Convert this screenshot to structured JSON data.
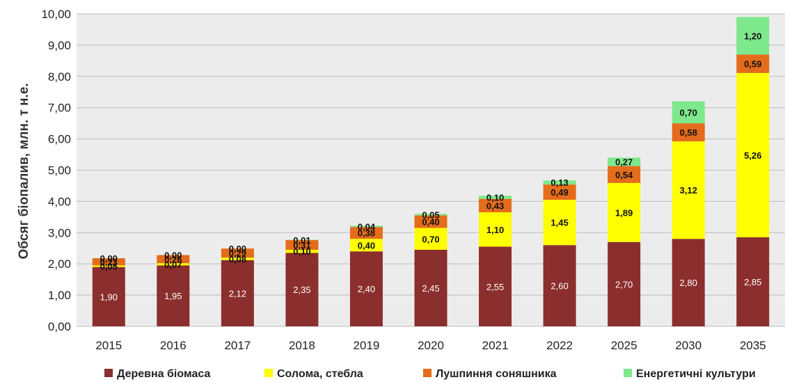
{
  "chart_data": {
    "type": "bar",
    "stacked": true,
    "title": "",
    "xlabel": "",
    "ylabel": "Обсяг біопалив, млн. т н.е.",
    "ylim": [
      0,
      10
    ],
    "ytick_step": 1,
    "yticks": [
      "0,00",
      "1,00",
      "2,00",
      "3,00",
      "4,00",
      "5,00",
      "6,00",
      "7,00",
      "8,00",
      "9,00",
      "10,00"
    ],
    "grid": true,
    "legend_position": "bottom",
    "categories": [
      "2015",
      "2016",
      "2017",
      "2018",
      "2019",
      "2020",
      "2021",
      "2022",
      "2025",
      "2030",
      "2035"
    ],
    "series": [
      {
        "name": "Деревна біомаса",
        "color": "#8B2E2E",
        "values": [
          1.9,
          1.95,
          2.12,
          2.35,
          2.4,
          2.45,
          2.55,
          2.6,
          2.7,
          2.8,
          2.85
        ],
        "labels": [
          "1,90",
          "1,95",
          "2,12",
          "2,35",
          "2,40",
          "2,45",
          "2,55",
          "2,60",
          "2,70",
          "2,80",
          "2,85"
        ]
      },
      {
        "name": "Солома, стебла",
        "color": "#FFFF00",
        "values": [
          0.05,
          0.07,
          0.08,
          0.1,
          0.4,
          0.7,
          1.1,
          1.45,
          1.89,
          3.12,
          5.26
        ],
        "labels": [
          "0,05",
          "0,07",
          "0,08",
          "0,10",
          "0,40",
          "0,70",
          "1,10",
          "1,45",
          "1,89",
          "3,12",
          "5,26"
        ]
      },
      {
        "name": "Лушпиння соняшника",
        "color": "#E46C1B",
        "values": [
          0.23,
          0.26,
          0.29,
          0.31,
          0.38,
          0.4,
          0.43,
          0.49,
          0.54,
          0.58,
          0.59
        ],
        "labels": [
          "0,23",
          "0,26",
          "0,29",
          "0,31",
          "0,38",
          "0,40",
          "0,43",
          "0,49",
          "0,54",
          "0,58",
          "0,59"
        ]
      },
      {
        "name": "Енергетичні культури",
        "color": "#7EE88C",
        "values": [
          0.0,
          0.0,
          0.0,
          0.01,
          0.04,
          0.05,
          0.1,
          0.13,
          0.27,
          0.7,
          1.2
        ],
        "labels": [
          "0,00",
          "0,00",
          "0,00",
          "0,01",
          "0,04",
          "0,05",
          "0,10",
          "0,13",
          "0,27",
          "0,70",
          "1,20"
        ]
      }
    ]
  }
}
